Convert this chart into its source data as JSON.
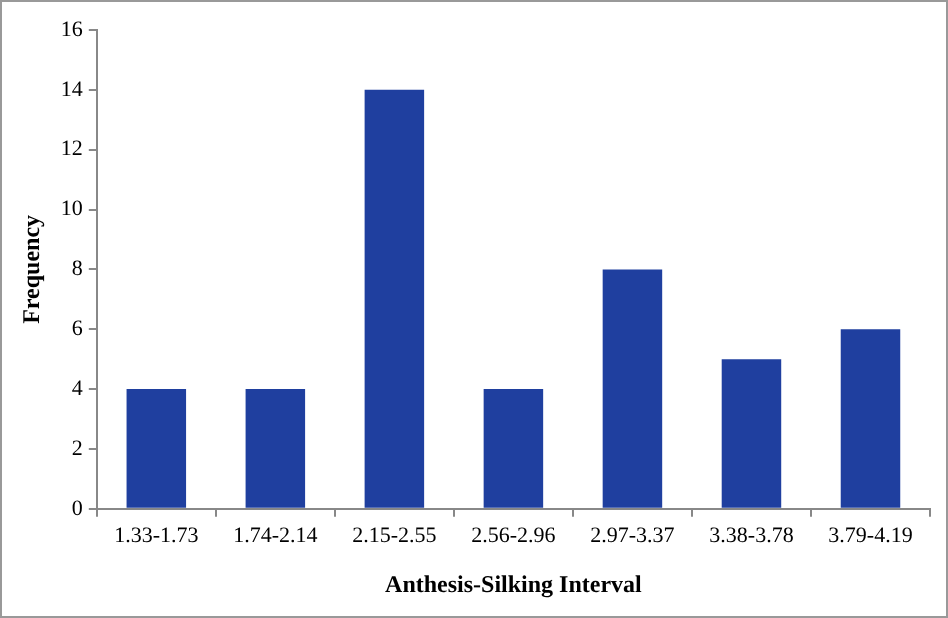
{
  "chart_data": {
    "type": "bar",
    "xlabel": "Anthesis-Silking Interval",
    "ylabel": "Frequency",
    "categories": [
      "1.33-1.73",
      "1.74-2.14",
      "2.15-2.55",
      "2.56-2.96",
      "2.97-3.37",
      "3.38-3.78",
      "3.79-4.19"
    ],
    "values": [
      4,
      4,
      14,
      4,
      8,
      5,
      6
    ],
    "color": "#1f3f9f",
    "ylim": [
      0,
      16
    ],
    "yticks": [
      0,
      2,
      4,
      6,
      8,
      10,
      12,
      14,
      16
    ],
    "grid": false,
    "legend": false
  }
}
